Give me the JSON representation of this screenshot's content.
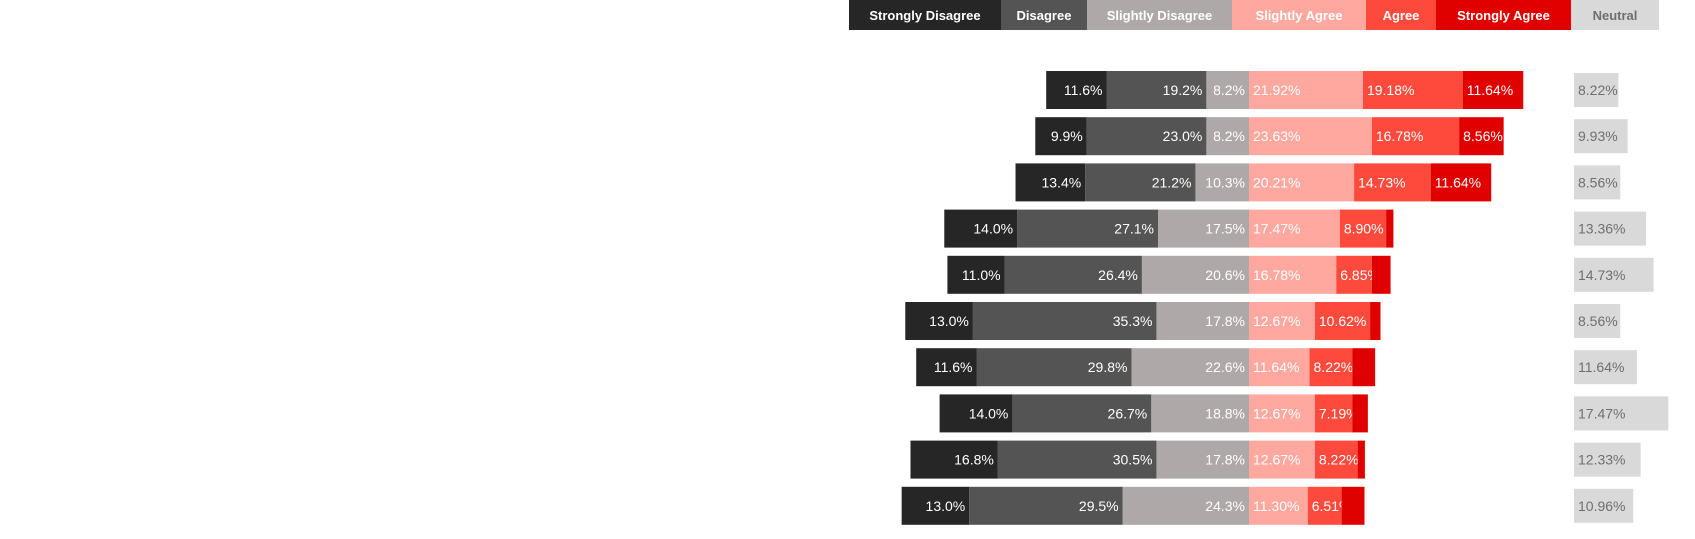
{
  "chart_data": {
    "type": "bar",
    "orientation": "horizontal-diverging",
    "title": "",
    "xlabel": "",
    "ylabel": "",
    "grid": false,
    "legend_position": "top",
    "legend": [
      {
        "name": "Strongly Disagree",
        "color": "#262626",
        "text_color": "#ffffff"
      },
      {
        "name": "Disagree",
        "color": "#545454",
        "text_color": "#ffffff"
      },
      {
        "name": "Slightly Disagree",
        "color": "#aea9a8",
        "text_color": "#ffffff"
      },
      {
        "name": "Slightly Agree",
        "color": "#fea89f",
        "text_color": "#ffffff"
      },
      {
        "name": "Agree",
        "color": "#fe4a3c",
        "text_color": "#ffffff"
      },
      {
        "name": "Strongly Agree",
        "color": "#e00000",
        "text_color": "#ffffff"
      },
      {
        "name": "Neutral",
        "color": "#d9d9d9",
        "text_color": "#6f6f6f"
      }
    ],
    "series": [
      {
        "name": "Strongly Disagree",
        "values": [
          11.6,
          9.9,
          13.4,
          14.0,
          11.0,
          13.0,
          11.6,
          14.0,
          16.8,
          13.0
        ],
        "labels": [
          "11.6%",
          "9.9%",
          "13.4%",
          "14.0%",
          "11.0%",
          "13.0%",
          "11.6%",
          "14.0%",
          "16.8%",
          "13.0%"
        ]
      },
      {
        "name": "Disagree",
        "values": [
          19.2,
          23.0,
          21.2,
          27.1,
          26.4,
          35.3,
          29.8,
          26.7,
          30.5,
          29.5
        ],
        "labels": [
          "19.2%",
          "23.0%",
          "21.2%",
          "27.1%",
          "26.4%",
          "35.3%",
          "29.8%",
          "26.7%",
          "30.5%",
          "29.5%"
        ]
      },
      {
        "name": "Slightly Disagree",
        "values": [
          8.2,
          8.2,
          10.3,
          17.5,
          20.6,
          17.8,
          22.6,
          18.8,
          17.8,
          24.3
        ],
        "labels": [
          "8.2%",
          "8.2%",
          "10.3%",
          "17.5%",
          "20.6%",
          "17.8%",
          "22.6%",
          "18.8%",
          "17.8%",
          "24.3%"
        ]
      },
      {
        "name": "Slightly Agree",
        "values": [
          21.92,
          23.63,
          20.21,
          17.47,
          16.78,
          12.67,
          11.64,
          12.67,
          12.67,
          11.3
        ],
        "labels": [
          "21.92%",
          "23.63%",
          "20.21%",
          "17.47%",
          "16.78%",
          "12.67%",
          "11.64%",
          "12.67%",
          "12.67%",
          "11.30%"
        ]
      },
      {
        "name": "Agree",
        "values": [
          19.18,
          16.78,
          14.73,
          8.9,
          6.85,
          10.62,
          8.22,
          7.19,
          8.22,
          6.51
        ],
        "labels": [
          "19.18%",
          "16.78%",
          "14.73%",
          "8.90%",
          "6.85%",
          "10.62%",
          "8.22%",
          "7.19%",
          "8.22%",
          "6.51%"
        ]
      },
      {
        "name": "Strongly Agree",
        "values": [
          11.64,
          8.56,
          11.64,
          1.4,
          3.6,
          2.0,
          4.4,
          3.0,
          1.4,
          4.4
        ],
        "labels": [
          "11.64%",
          "8.56%",
          "11.64%",
          "",
          "",
          "",
          "",
          "",
          "",
          ""
        ]
      },
      {
        "name": "Neutral",
        "values": [
          8.22,
          9.93,
          8.56,
          13.36,
          14.73,
          8.56,
          11.64,
          17.47,
          12.33,
          10.96
        ],
        "labels": [
          "8.22%",
          "9.93%",
          "8.56%",
          "13.36%",
          "14.73%",
          "8.56%",
          "11.64%",
          "17.47%",
          "12.33%",
          "10.96%"
        ]
      }
    ]
  }
}
